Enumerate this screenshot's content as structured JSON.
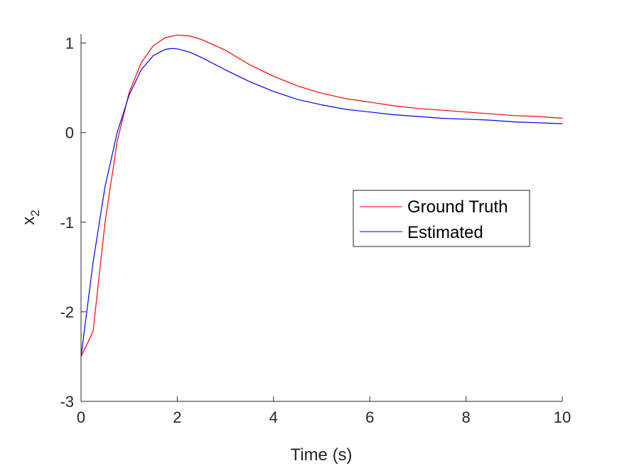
{
  "chart_data": {
    "type": "line",
    "title": "",
    "xlabel": "Time (s)",
    "ylabel": {
      "base": "x",
      "subscript": "2"
    },
    "xlim": [
      0,
      10
    ],
    "ylim": [
      -3,
      1.1
    ],
    "xticks": [
      0,
      2,
      4,
      6,
      8,
      10
    ],
    "xtick_labels": [
      "0",
      "2",
      "4",
      "6",
      "8",
      "10"
    ],
    "yticks": [
      -3,
      -2,
      -1,
      0,
      1
    ],
    "ytick_labels": [
      "-3",
      "-2",
      "-1",
      "0",
      "1"
    ],
    "grid": false,
    "legend_position": "right",
    "series": [
      {
        "name": "Ground Truth",
        "color": "#ff0000",
        "x": [
          0,
          0.25,
          0.5,
          0.75,
          1.0,
          1.25,
          1.5,
          1.75,
          2.0,
          2.25,
          2.5,
          3.0,
          3.5,
          4.0,
          4.5,
          5.0,
          5.5,
          6.0,
          6.5,
          7.0,
          7.5,
          8.0,
          8.5,
          9.0,
          9.5,
          10.0
        ],
        "y": [
          -2.5,
          -2.22,
          -1.0,
          -0.1,
          0.45,
          0.78,
          0.97,
          1.06,
          1.09,
          1.08,
          1.04,
          0.92,
          0.76,
          0.63,
          0.52,
          0.44,
          0.38,
          0.34,
          0.3,
          0.27,
          0.25,
          0.23,
          0.21,
          0.19,
          0.18,
          0.16
        ]
      },
      {
        "name": "Estimated",
        "color": "#0000ff",
        "x": [
          0,
          0.25,
          0.5,
          0.75,
          1.0,
          1.25,
          1.5,
          1.75,
          1.9,
          2.0,
          2.25,
          2.5,
          3.0,
          3.5,
          4.0,
          4.5,
          5.0,
          5.5,
          6.0,
          6.5,
          7.0,
          7.5,
          8.0,
          8.5,
          9.0,
          9.5,
          10.0
        ],
        "y": [
          -2.5,
          -1.45,
          -0.6,
          0.0,
          0.42,
          0.7,
          0.86,
          0.93,
          0.94,
          0.935,
          0.9,
          0.84,
          0.7,
          0.57,
          0.46,
          0.37,
          0.31,
          0.26,
          0.23,
          0.2,
          0.18,
          0.16,
          0.15,
          0.14,
          0.12,
          0.11,
          0.1
        ]
      }
    ]
  }
}
